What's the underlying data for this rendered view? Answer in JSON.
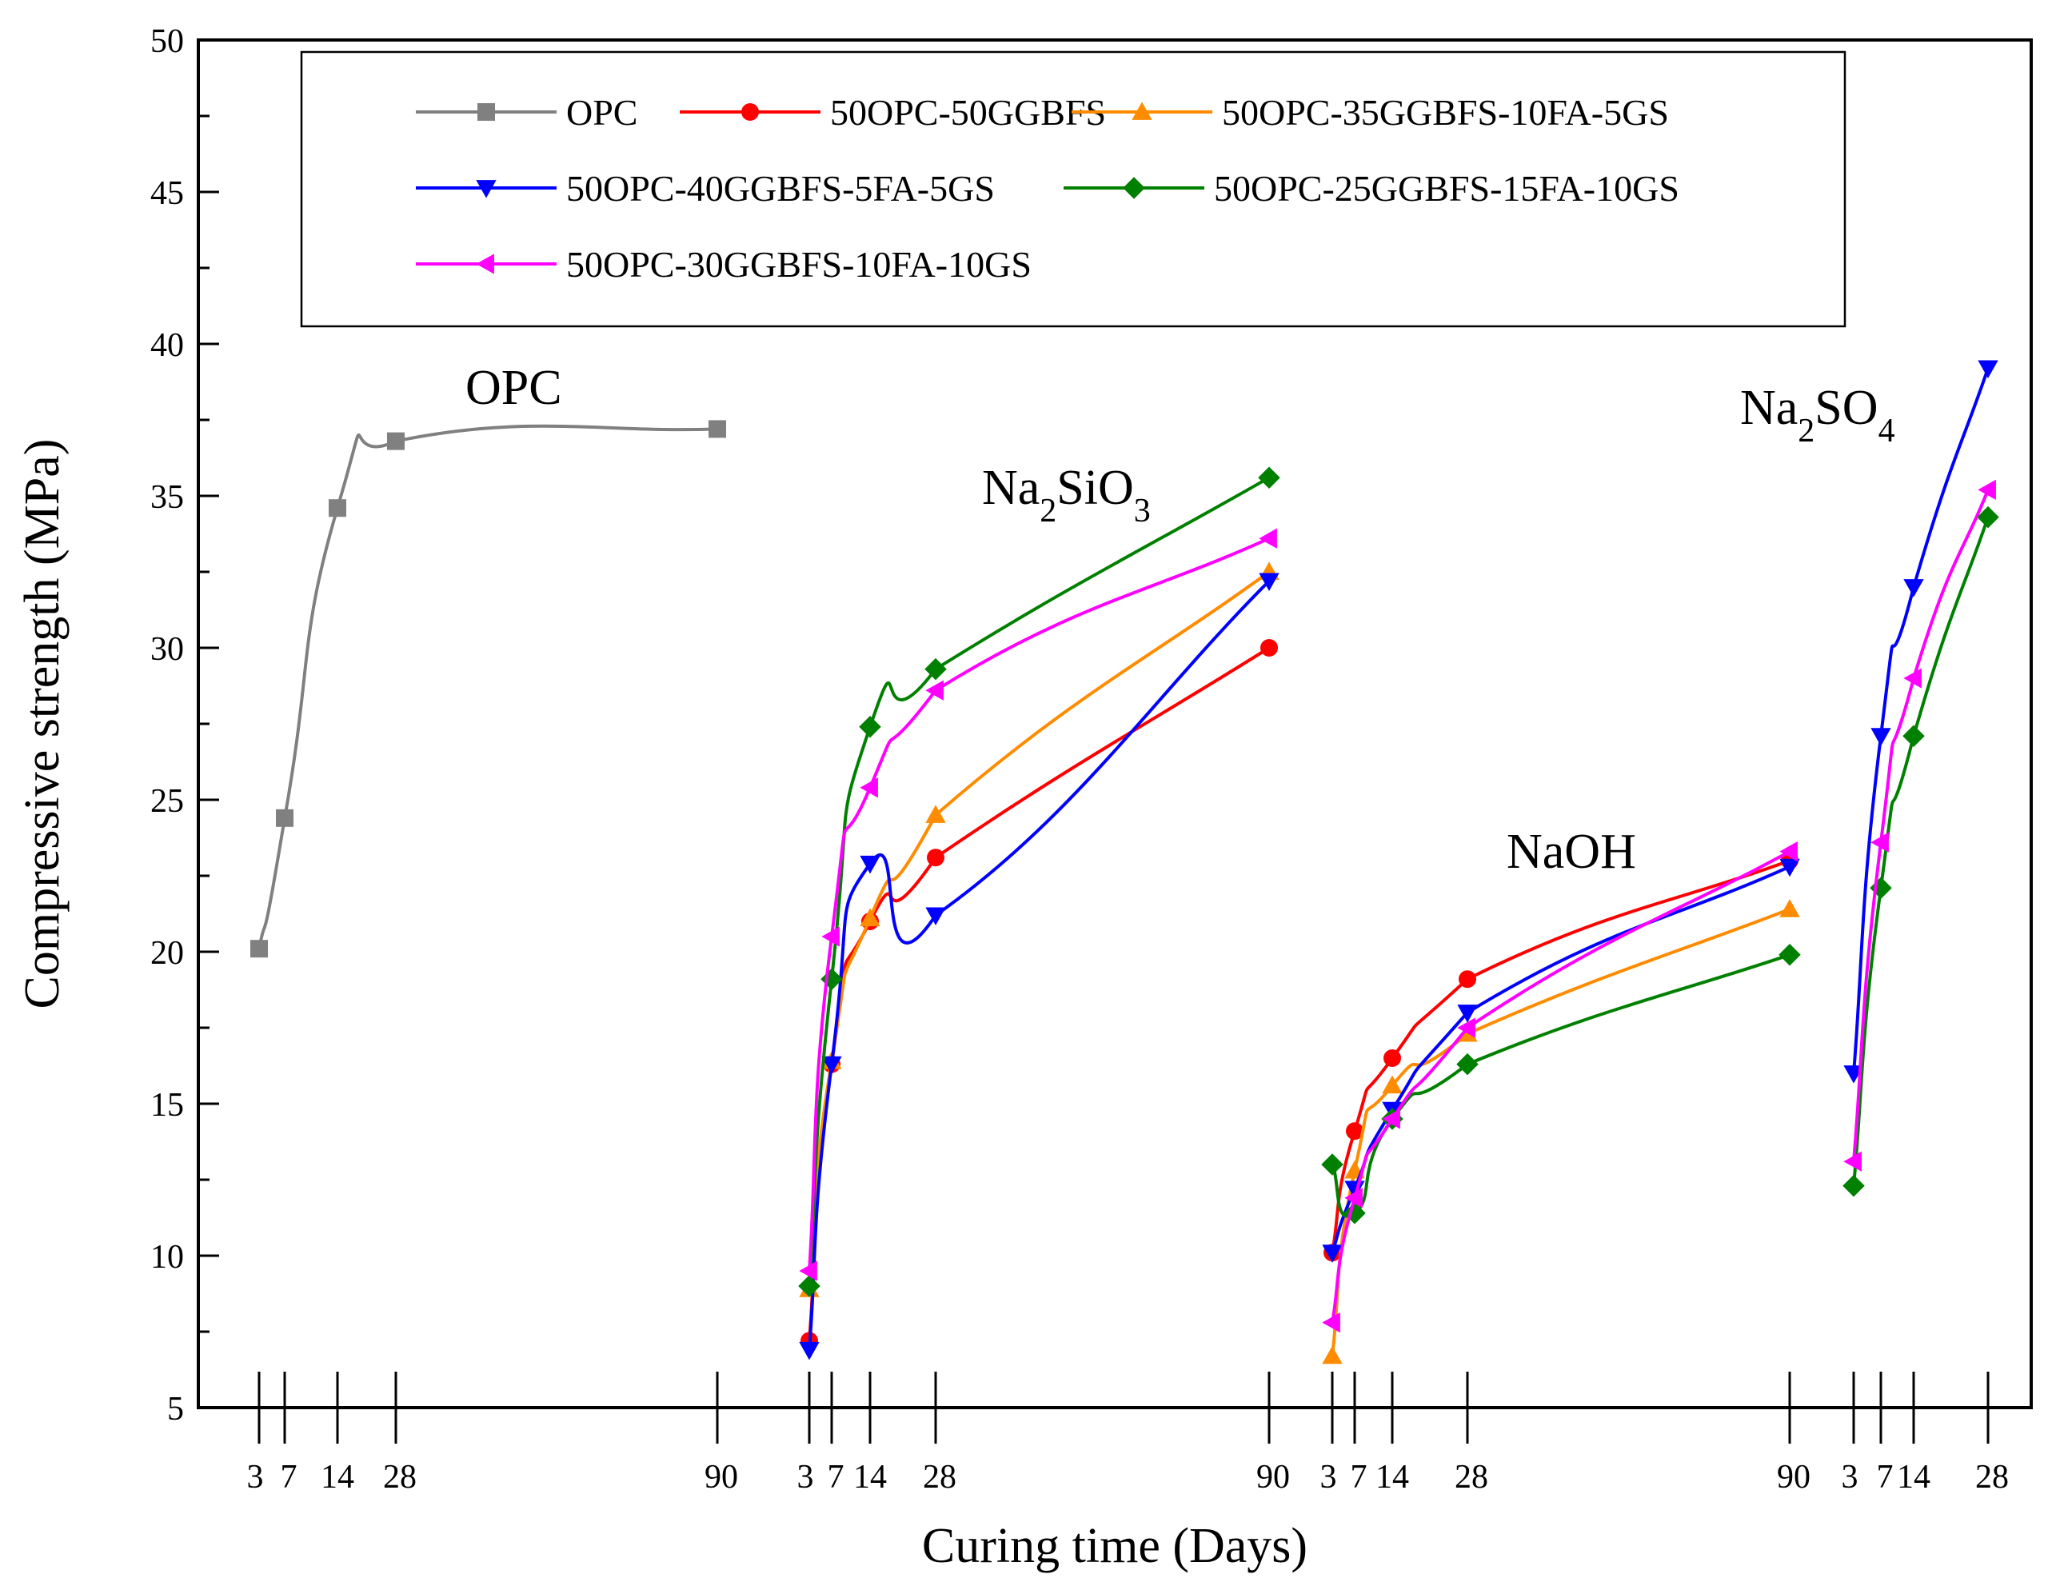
{
  "chart_data": {
    "type": "line",
    "xlabel": "Curing time (Days)",
    "ylabel": "Compressive strength (MPa)",
    "ylim": [
      5,
      50
    ],
    "yticks": [
      5,
      10,
      15,
      20,
      25,
      30,
      35,
      40,
      45,
      50
    ],
    "grid": false,
    "legend_position": "top",
    "x_days": [
      3,
      7,
      14,
      28,
      90
    ],
    "x_tick_labels": [
      "3",
      "7",
      "14",
      "28",
      "90"
    ],
    "groups": [
      {
        "id": "opc",
        "label": "OPC",
        "label_sub": "",
        "label_tail": "",
        "days": [
          3,
          7,
          14,
          28,
          90
        ]
      },
      {
        "id": "na2sio3",
        "label": "Na",
        "label_sub": "2",
        "label_mid": "SiO",
        "label_sub2": "3",
        "days": [
          3,
          7,
          14,
          28,
          90
        ]
      },
      {
        "id": "naoh",
        "label": "NaOH",
        "label_sub": "",
        "label_tail": "",
        "days": [
          3,
          7,
          14,
          28,
          90
        ]
      },
      {
        "id": "na2so4",
        "label": "Na",
        "label_sub": "2",
        "label_mid": "SO",
        "label_sub2": "4",
        "days": [
          3,
          7,
          14,
          28
        ]
      }
    ],
    "series": [
      {
        "name": "OPC",
        "color": "#808080",
        "marker": "square",
        "values": {
          "opc": [
            20.1,
            24.4,
            34.6,
            36.8,
            37.2
          ]
        }
      },
      {
        "name": "50OPC-50GGBFS",
        "color": "#ff0000",
        "marker": "circle",
        "values": {
          "na2sio3": [
            7.2,
            16.3,
            21.0,
            23.1,
            30.0
          ],
          "naoh": [
            10.1,
            14.1,
            16.5,
            19.1,
            23.0
          ]
        }
      },
      {
        "name": "50OPC-35GGBFS-10FA-5GS",
        "color": "#ff8c00",
        "marker": "triangle-up",
        "values": {
          "na2sio3": [
            8.9,
            16.4,
            21.1,
            24.5,
            32.5
          ],
          "naoh": [
            6.7,
            12.8,
            15.6,
            17.3,
            21.4
          ]
        }
      },
      {
        "name": "50OPC-40GGBFS-5FA-5GS",
        "color": "#0000ff",
        "marker": "triangle-down",
        "values": {
          "na2sio3": [
            6.9,
            16.3,
            22.9,
            21.2,
            32.2
          ],
          "naoh": [
            10.1,
            12.2,
            14.8,
            18.0,
            22.8
          ],
          "na2so4": [
            16.0,
            27.1,
            32.0,
            39.2
          ]
        }
      },
      {
        "name": "50OPC-25GGBFS-15FA-10GS",
        "color": "#008000",
        "marker": "diamond",
        "values": {
          "na2sio3": [
            9.0,
            19.1,
            27.4,
            29.3,
            35.6
          ],
          "naoh": [
            13.0,
            11.4,
            14.5,
            16.3,
            19.9
          ],
          "na2so4": [
            12.3,
            22.1,
            27.1,
            34.3
          ]
        }
      },
      {
        "name": "50OPC-30GGBFS-10FA-10GS",
        "color": "#ff00ff",
        "marker": "triangle-left",
        "values": {
          "na2sio3": [
            9.5,
            20.5,
            25.4,
            28.6,
            33.6
          ],
          "naoh": [
            7.8,
            11.9,
            14.5,
            17.5,
            23.3
          ],
          "na2so4": [
            13.1,
            23.6,
            29.0,
            35.2
          ]
        }
      }
    ]
  }
}
